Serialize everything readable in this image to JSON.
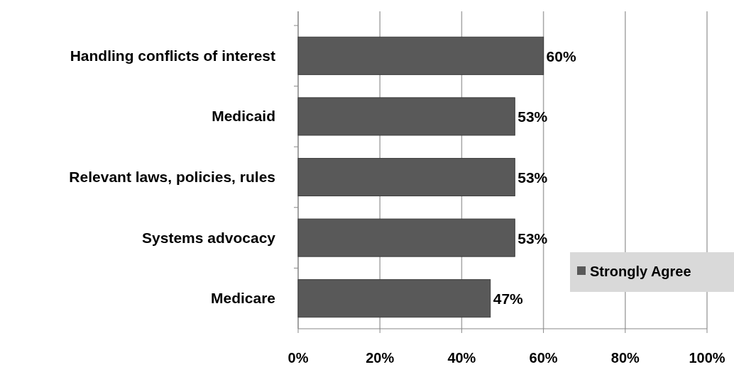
{
  "chart_data": {
    "type": "bar",
    "orientation": "horizontal",
    "categories": [
      "Handling conflicts of interest",
      "Medicaid",
      "Relevant laws, policies, rules",
      "Systems advocacy",
      "Medicare"
    ],
    "series": [
      {
        "name": "Strongly Agree",
        "color": "#595959",
        "values": [
          60,
          53,
          53,
          53,
          47
        ],
        "value_labels": [
          "60%",
          "53%",
          "53%",
          "53%",
          "47%"
        ]
      }
    ],
    "xlim": [
      0,
      100
    ],
    "xticks": [
      {
        "value": 0,
        "label": "0%"
      },
      {
        "value": 20,
        "label": "20%"
      },
      {
        "value": 40,
        "label": "40%"
      },
      {
        "value": 60,
        "label": "60%"
      },
      {
        "value": 80,
        "label": "80%"
      },
      {
        "value": 100,
        "label": "100%"
      }
    ],
    "grid": "x",
    "legend": "bottom right"
  }
}
